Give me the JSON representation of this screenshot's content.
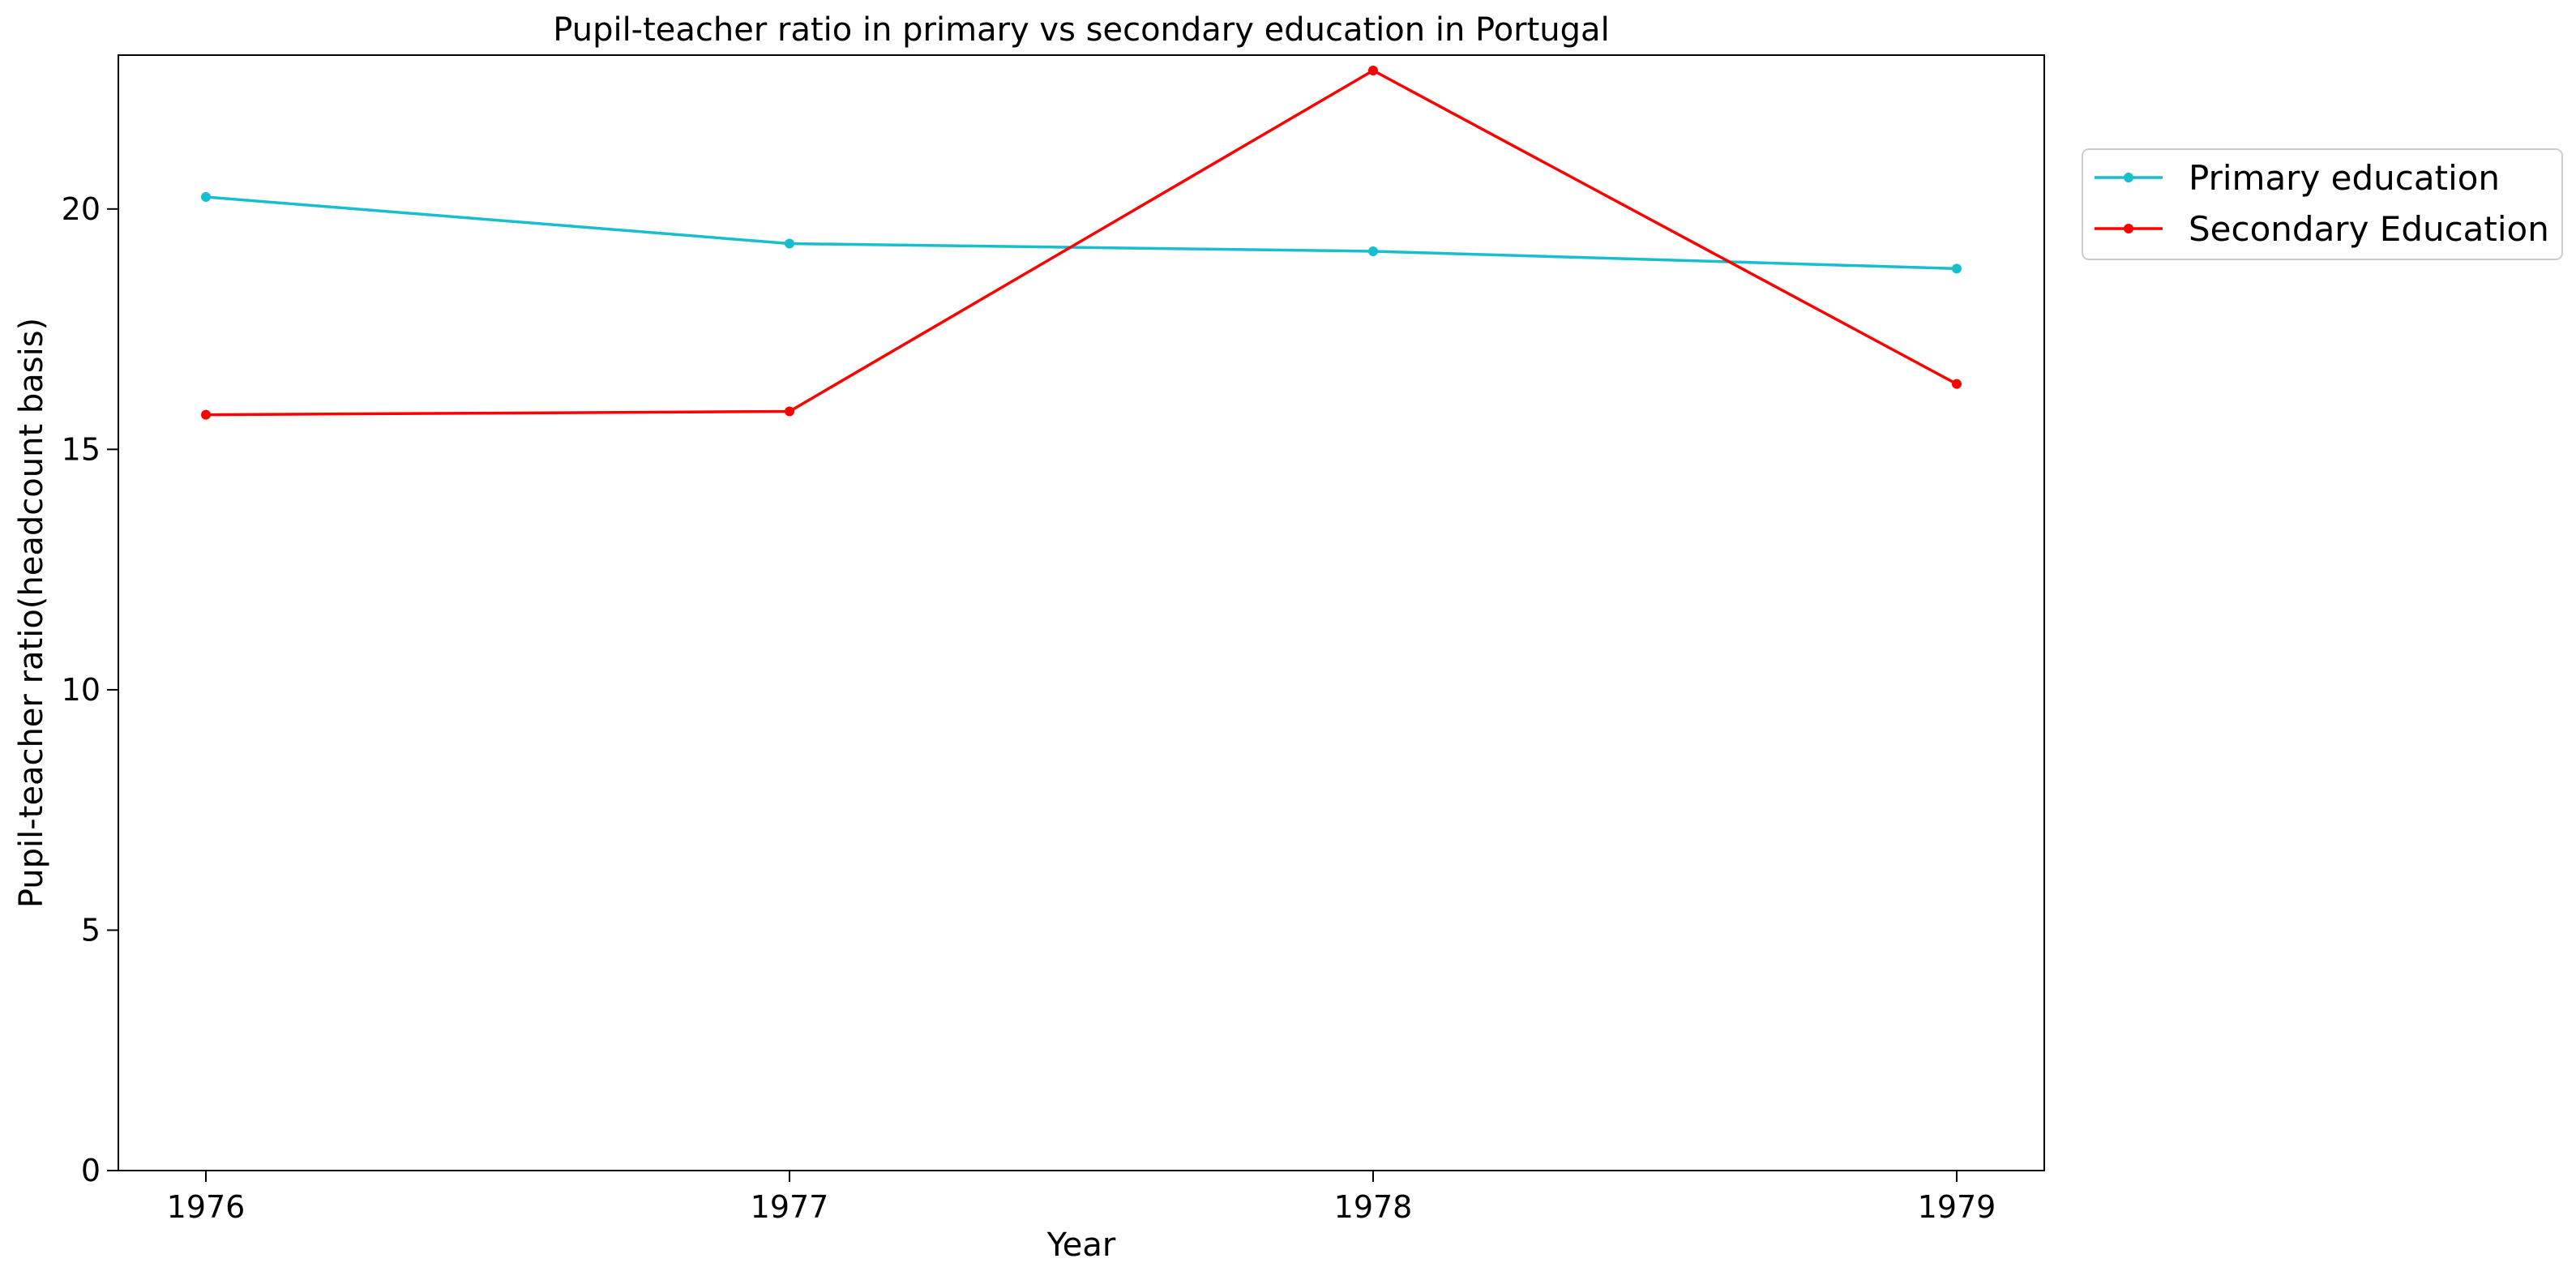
{
  "chart_data": {
    "type": "line",
    "title": "Pupil-teacher ratio in primary vs secondary education in Portugal",
    "xlabel": "Year",
    "ylabel": "Pupil-teacher ratio(headcount basis)",
    "x": [
      "1976",
      "1977",
      "1978",
      "1979"
    ],
    "ylim": [
      0,
      23.2
    ],
    "yticks": [
      0,
      5,
      10,
      15,
      20
    ],
    "grid": false,
    "legend_position": "right, outside plot area, top",
    "series": [
      {
        "name": "Primary education",
        "color": "#17becf",
        "values": [
          20.25,
          19.28,
          19.12,
          18.76
        ]
      },
      {
        "name": "Secondary Education",
        "color": "#ff0000",
        "values": [
          15.72,
          15.79,
          22.88,
          16.36
        ]
      }
    ]
  }
}
